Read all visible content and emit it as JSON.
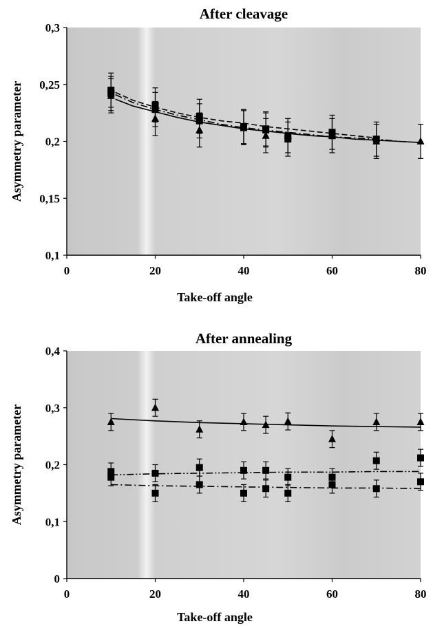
{
  "chart_data": [
    {
      "type": "scatter",
      "title": "After cleavage",
      "xlabel": "Take-off angle",
      "ylabel": "Asymmetry parameter",
      "xlim": [
        0,
        80
      ],
      "ylim": [
        0.1,
        0.3
      ],
      "xticks": [
        "0",
        "20",
        "40",
        "60",
        "80"
      ],
      "yticks": [
        "0,1",
        "0,15",
        "0,2",
        "0,25",
        "0,3"
      ],
      "xtick_values": [
        0,
        20,
        40,
        60,
        80
      ],
      "ytick_values": [
        0.1,
        0.15,
        0.2,
        0.25,
        0.3
      ],
      "background": "#cfcfcf",
      "series": [
        {
          "marker": "triangle",
          "line": "solid",
          "x": [
            10,
            20,
            30,
            40,
            45,
            50,
            60,
            70,
            80
          ],
          "y": [
            0.24,
            0.22,
            0.21,
            0.213,
            0.205,
            0.205,
            0.205,
            0.2,
            0.2
          ],
          "err": [
            0.015,
            0.015,
            0.015,
            0.015,
            0.015,
            0.015,
            0.015,
            0.015,
            0.015
          ],
          "fit": {
            "x": [
              11,
              15,
              20,
              25,
              30,
              35,
              40,
              45,
              50,
              55,
              60,
              65,
              70,
              75,
              80
            ],
            "y": [
              0.237,
              0.231,
              0.226,
              0.221,
              0.217,
              0.214,
              0.211,
              0.209,
              0.207,
              0.205,
              0.204,
              0.202,
              0.201,
              0.2,
              0.199
            ]
          }
        },
        {
          "marker": "square",
          "line": "dashed",
          "x": [
            10,
            20,
            30,
            40,
            45,
            50,
            60,
            70
          ],
          "y": [
            0.245,
            0.232,
            0.222,
            0.213,
            0.211,
            0.202,
            0.208,
            0.202
          ],
          "err": [
            0.015,
            0.015,
            0.015,
            0.015,
            0.015,
            0.015,
            0.015,
            0.015
          ],
          "fit": {
            "x": [
              11,
              15,
              20,
              25,
              30,
              35,
              40,
              45,
              50,
              55,
              60,
              65,
              70
            ],
            "y": [
              0.243,
              0.236,
              0.23,
              0.225,
              0.221,
              0.218,
              0.216,
              0.213,
              0.211,
              0.209,
              0.207,
              0.205,
              0.203
            ]
          }
        },
        {
          "marker": "square",
          "line": "dashdot",
          "x": [
            10,
            20,
            30,
            40,
            45,
            50,
            60
          ],
          "y": [
            0.242,
            0.228,
            0.218,
            0.212,
            0.21,
            0.205,
            0.205
          ],
          "err": [
            0.015,
            0.015,
            0.015,
            0.015,
            0.015,
            0.015,
            0.015
          ],
          "fit": {
            "x": [
              11,
              15,
              20,
              25,
              30,
              35,
              40,
              45,
              50,
              55,
              60,
              65,
              70,
              75,
              80
            ],
            "y": [
              0.241,
              0.234,
              0.228,
              0.223,
              0.219,
              0.215,
              0.212,
              0.21,
              0.208,
              0.206,
              0.204,
              0.203,
              0.202,
              0.2,
              0.199
            ]
          }
        }
      ]
    },
    {
      "type": "scatter",
      "title": "After annealing",
      "xlabel": "Take-off angle",
      "ylabel": "Asymmetry parameter",
      "xlim": [
        0,
        80
      ],
      "ylim": [
        0,
        0.4
      ],
      "xticks": [
        "0",
        "20",
        "40",
        "60",
        "80"
      ],
      "yticks": [
        "0",
        "0,1",
        "0,2",
        "0,3",
        "0,4"
      ],
      "xtick_values": [
        0,
        20,
        40,
        60,
        80
      ],
      "ytick_values": [
        0,
        0.1,
        0.2,
        0.3,
        0.4
      ],
      "background": "#cfcfcf",
      "series": [
        {
          "marker": "triangle",
          "line": "solid",
          "x": [
            10,
            20,
            30,
            40,
            45,
            50,
            60,
            70,
            80
          ],
          "y": [
            0.275,
            0.3,
            0.262,
            0.275,
            0.27,
            0.276,
            0.245,
            0.275,
            0.275
          ],
          "err": [
            0.015,
            0.015,
            0.015,
            0.015,
            0.015,
            0.015,
            0.015,
            0.015,
            0.015
          ],
          "fit": {
            "x": [
              10,
              20,
              30,
              40,
              50,
              60,
              70,
              80
            ],
            "y": [
              0.281,
              0.277,
              0.274,
              0.272,
              0.27,
              0.268,
              0.267,
              0.266
            ]
          }
        },
        {
          "marker": "square",
          "line": "dashdotdot",
          "x": [
            10,
            20,
            30,
            40,
            45,
            50,
            60,
            70,
            80
          ],
          "y": [
            0.188,
            0.185,
            0.195,
            0.19,
            0.19,
            0.178,
            0.178,
            0.207,
            0.212
          ],
          "err": [
            0.015,
            0.015,
            0.015,
            0.015,
            0.015,
            0.015,
            0.015,
            0.015,
            0.015
          ],
          "fit": {
            "x": [
              10,
              20,
              30,
              40,
              50,
              60,
              70,
              80
            ],
            "y": [
              0.182,
              0.184,
              0.185,
              0.186,
              0.187,
              0.187,
              0.188,
              0.188
            ]
          }
        },
        {
          "marker": "square",
          "line": "dashdot",
          "x": [
            10,
            20,
            30,
            40,
            45,
            50,
            60,
            70,
            80
          ],
          "y": [
            0.178,
            0.15,
            0.165,
            0.15,
            0.158,
            0.15,
            0.165,
            0.158,
            0.17
          ],
          "err": [
            0.015,
            0.015,
            0.015,
            0.015,
            0.015,
            0.015,
            0.015,
            0.015,
            0.015
          ],
          "fit": {
            "x": [
              10,
              20,
              30,
              40,
              50,
              60,
              70,
              80
            ],
            "y": [
              0.165,
              0.163,
              0.162,
              0.161,
              0.16,
              0.159,
              0.159,
              0.158
            ]
          }
        }
      ]
    }
  ]
}
